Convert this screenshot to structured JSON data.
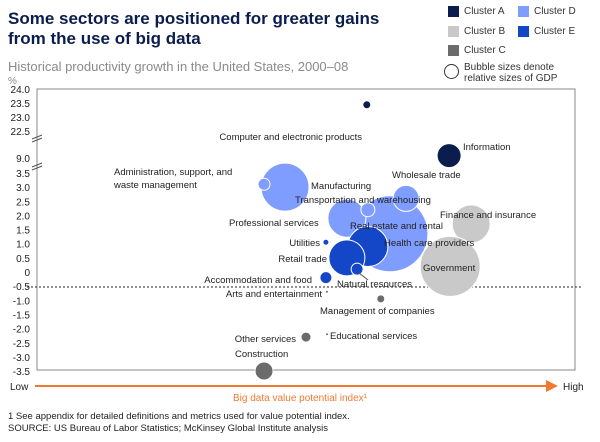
{
  "title": "Some sectors are positioned for greater gains from the use of big data",
  "subtitle": "Historical productivity growth in the United States, 2000–08",
  "unit": "%",
  "legend": {
    "items": [
      {
        "label": "Cluster A",
        "color": "#0b1d4d"
      },
      {
        "label": "Cluster D",
        "color": "#7f9cff"
      },
      {
        "label": "Cluster B",
        "color": "#c9c9c9"
      },
      {
        "label": "Cluster E",
        "color": "#1447c8"
      },
      {
        "label": "Cluster C",
        "color": "#6b6b6b"
      }
    ],
    "bubble_note": "Bubble sizes denote relative sizes of GDP"
  },
  "footnote": "1  See appendix for detailed definitions and metrics used for value potential index.",
  "source": "SOURCE:  US Bureau of Labor Statistics; McKinsey Global Institute analysis",
  "chart_data": {
    "type": "scatter",
    "title": "Historical productivity growth in the United States, 2000–08",
    "ylabel": "%",
    "xlabel": "Big data value potential index¹",
    "x_low_label": "Low",
    "x_high_label": "High",
    "yticks": [
      "24.0",
      "23.5",
      "23.0",
      "22.5",
      "9.0",
      "3.5",
      "3.0",
      "2.5",
      "2.0",
      "1.5",
      "1.0",
      "0.5",
      "0",
      "-0.5",
      "-1.0",
      "-1.5",
      "-2.0",
      "-2.5",
      "-3.0",
      "-3.5"
    ],
    "y_axis_break": "between 22.5 and 9.0, and between 9.0 and 3.5",
    "reference_line_y": -0.5,
    "points": [
      {
        "name": "Computer and electronic products",
        "cluster": "A",
        "x": 61.3,
        "y": 22.3,
        "size": 4
      },
      {
        "name": "Information",
        "cluster": "A",
        "x": 76.6,
        "y": 9.6,
        "size": 12
      },
      {
        "name": "Manufacturing",
        "cluster": "D",
        "x": 46.1,
        "y": 3.0,
        "size": 24
      },
      {
        "name": "Administration, support, and waste management",
        "cluster": "D",
        "x": 42.2,
        "y": 3.1,
        "size": 6
      },
      {
        "name": "Wholesale trade",
        "cluster": "D",
        "x": 68.6,
        "y": 2.6,
        "size": 13
      },
      {
        "name": "Real estate and rental",
        "cluster": "D",
        "x": 65.6,
        "y": 1.35,
        "size": 38
      },
      {
        "name": "Professional services",
        "cluster": "D",
        "x": 57.6,
        "y": 1.9,
        "size": 19
      },
      {
        "name": "Transportation and warehousing",
        "cluster": "D",
        "x": 61.5,
        "y": 2.2,
        "size": 7
      },
      {
        "name": "Finance and insurance",
        "cluster": "B",
        "x": 80.7,
        "y": 1.7,
        "size": 19
      },
      {
        "name": "Government",
        "cluster": "B",
        "x": 76.8,
        "y": 0.2,
        "size": 30
      },
      {
        "name": "Health care providers",
        "cluster": "E",
        "x": 61.5,
        "y": 0.9,
        "size": 20
      },
      {
        "name": "Retail trade",
        "cluster": "E",
        "x": 57.6,
        "y": 0.5,
        "size": 18
      },
      {
        "name": "Natural resources",
        "cluster": "E",
        "x": 59.5,
        "y": 0.1,
        "size": 6
      },
      {
        "name": "Utilities",
        "cluster": "E",
        "x": 53.7,
        "y": 1.05,
        "size": 3
      },
      {
        "name": "Accommodation and food",
        "cluster": "E",
        "x": 53.7,
        "y": -0.2,
        "size": 6
      },
      {
        "name": "Arts and entertainment",
        "cluster": "C",
        "x": 53.9,
        "y": -0.7,
        "size": 1.5
      },
      {
        "name": "Management of companies",
        "cluster": "C",
        "x": 63.9,
        "y": -0.95,
        "size": 4
      },
      {
        "name": "Educational services",
        "cluster": "C",
        "x": 53.9,
        "y": -2.2,
        "size": 1.5
      },
      {
        "name": "Other services",
        "cluster": "C",
        "x": 50.0,
        "y": -2.3,
        "size": 5
      },
      {
        "name": "Construction",
        "cluster": "C",
        "x": 42.2,
        "y": -3.5,
        "size": 9
      }
    ]
  }
}
